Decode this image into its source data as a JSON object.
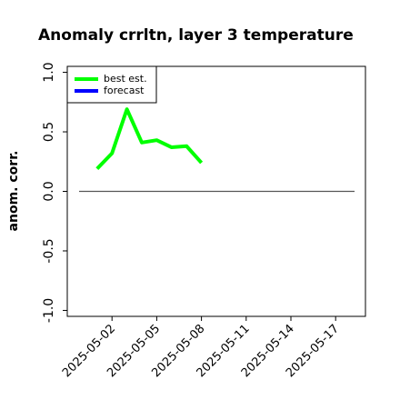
{
  "chart_data": {
    "type": "line",
    "title": "Anomaly crrltn, layer 3 temperature",
    "ylabel": "anom. corr.",
    "x": [
      "2025-05-01",
      "2025-05-02",
      "2025-05-03",
      "2025-05-04",
      "2025-05-05",
      "2025-05-06",
      "2025-05-07",
      "2025-05-08"
    ],
    "series": [
      {
        "name": "best est.",
        "color": "#00ff00",
        "values": [
          0.19,
          0.32,
          0.69,
          0.41,
          0.43,
          0.37,
          0.38,
          0.24
        ]
      },
      {
        "name": "forecast",
        "color": "#0000ff",
        "values": [
          null,
          null,
          null,
          null,
          null,
          null,
          null,
          null
        ]
      }
    ],
    "xlim": [
      "2025-04-29",
      "2025-05-19"
    ],
    "xticks": [
      "2025-05-02",
      "2025-05-05",
      "2025-05-08",
      "2025-05-11",
      "2025-05-14",
      "2025-05-17"
    ],
    "highlight_xtick": 2,
    "highlight_color": "#228b22",
    "ylim": [
      -1.05,
      1.05
    ],
    "yticks": [
      {
        "value": 1.0,
        "label": "1.0"
      },
      {
        "value": 0.5,
        "label": "0.5"
      },
      {
        "value": 0,
        "label": "0.0"
      },
      {
        "value": -0.5,
        "label": "-0.5"
      },
      {
        "value": -1.0,
        "label": "-1.0"
      }
    ],
    "hline": 0,
    "legend": "upper left"
  }
}
